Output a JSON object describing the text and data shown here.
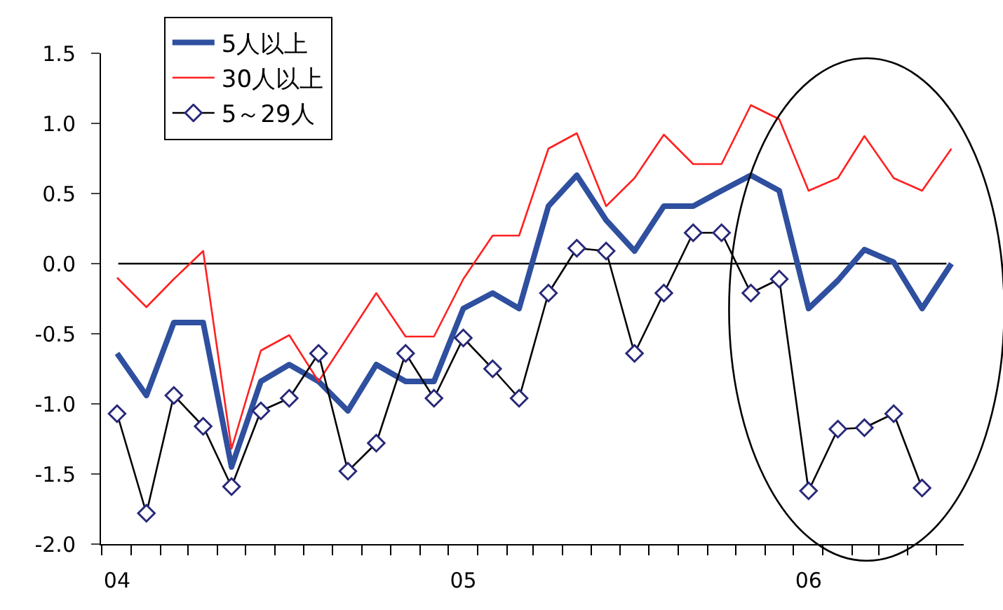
{
  "chart_data": {
    "type": "line",
    "x": [
      "2004-01",
      "2004-02",
      "2004-03",
      "2004-04",
      "2004-05",
      "2004-06",
      "2004-07",
      "2004-08",
      "2004-09",
      "2004-10",
      "2004-11",
      "2004-12",
      "2005-01",
      "2005-02",
      "2005-03",
      "2005-04",
      "2005-05",
      "2005-06",
      "2005-07",
      "2005-08",
      "2005-09",
      "2005-10",
      "2005-11",
      "2005-12",
      "2006-01",
      "2006-02",
      "2006-03",
      "2006-04",
      "2006-05",
      "2006-06"
    ],
    "series": [
      {
        "name": "5人以上",
        "color": "#2f4f9f",
        "marker": "none",
        "values": [
          -0.64,
          -0.94,
          -0.42,
          -0.42,
          -1.45,
          -0.84,
          -0.72,
          -0.84,
          -1.05,
          -0.72,
          -0.84,
          -0.84,
          -0.32,
          -0.21,
          -0.32,
          0.41,
          0.63,
          0.31,
          0.09,
          0.41,
          0.41,
          0.52,
          0.63,
          0.52,
          -0.32,
          -0.12,
          0.1,
          0.01,
          -0.32,
          0
        ]
      },
      {
        "name": "30人以上",
        "color": "#ff2020",
        "marker": "none",
        "values": [
          -0.1,
          -0.31,
          -0.11,
          0.09,
          -1.32,
          -0.62,
          -0.51,
          -0.84,
          -0.52,
          -0.21,
          -0.52,
          -0.52,
          -0.11,
          0.2,
          0.2,
          0.82,
          0.93,
          0.41,
          0.61,
          0.92,
          0.71,
          0.71,
          1.13,
          1.03,
          0.52,
          0.61,
          0.91,
          0.61,
          0.52,
          0.82
        ]
      },
      {
        "name": "5～29人",
        "color": "#000000",
        "marker": "diamond",
        "values": [
          -1.07,
          -1.78,
          -0.94,
          -1.16,
          -1.59,
          -1.05,
          -0.96,
          -0.64,
          -1.48,
          -1.28,
          -0.64,
          -0.96,
          -0.53,
          -0.75,
          -0.96,
          -0.21,
          0.11,
          0.09,
          -0.64,
          -0.21,
          0.22,
          0.22,
          -0.21,
          -0.11,
          -1.62,
          -1.18,
          -1.17,
          -1.07,
          -1.6,
          null
        ]
      }
    ],
    "xlim": [
      "2003-12-15",
      "2006-06-14"
    ],
    "xticks": [
      {
        "value": "2004-01",
        "label": "04"
      },
      {
        "value": "2005-01",
        "label": "05"
      },
      {
        "value": "2006-01",
        "label": "06"
      }
    ],
    "ylim": [
      -2.0,
      1.5
    ],
    "yticks": [
      {
        "value": -2.0,
        "label": "-2.0"
      },
      {
        "value": -1.5,
        "label": "-1.5"
      },
      {
        "value": -1.0,
        "label": "-1.0"
      },
      {
        "value": -0.5,
        "label": "-0.5"
      },
      {
        "value": 0,
        "label": "0.0"
      },
      {
        "value": 0.5,
        "label": "0.5"
      },
      {
        "value": 1.0,
        "label": "1.0"
      },
      {
        "value": 1.5,
        "label": "1.5"
      }
    ],
    "ref_lines": [
      {
        "axis": "y",
        "value": 0,
        "color": "#000000",
        "line_style": "solid"
      }
    ],
    "grid": false,
    "legend": "top left"
  }
}
